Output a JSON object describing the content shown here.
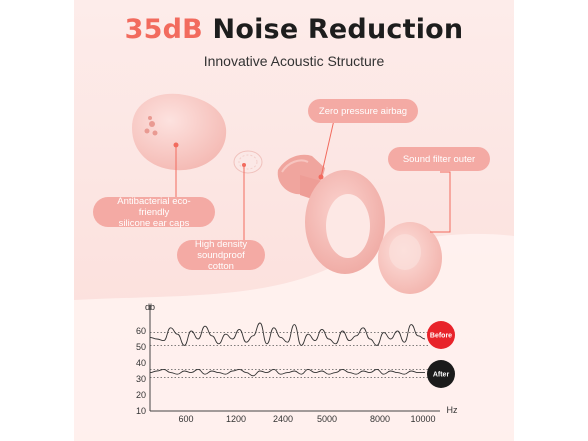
{
  "header": {
    "title_accent": "35dB",
    "title_rest": "Noise Reduction",
    "subtitle": "Innovative Acoustic Structure"
  },
  "callouts": {
    "zero_pressure": "Zero pressure airbag",
    "sound_filter": "Sound filter outer",
    "ear_caps_line1": "Antibacterial eco-friendly",
    "ear_caps_line2": "silicone ear caps",
    "cotton_line1": "High density",
    "cotton_line2": "soundproof cotton"
  },
  "colors": {
    "background": "#fce6e3",
    "accent": "#f26b5e",
    "pill": "#f4aaa4",
    "before_badge": "#e8232a",
    "after_badge": "#1b1b1b"
  },
  "chart_data": {
    "type": "line",
    "ylabel": "db",
    "xlabel": "Hz",
    "x_ticks": [
      "600",
      "1200",
      "2400",
      "5000",
      "8000",
      "10000"
    ],
    "y_ticks": [
      10,
      20,
      30,
      40,
      50,
      60
    ],
    "ylim": [
      10,
      65
    ],
    "reference_lines": [
      59,
      51,
      36,
      31
    ],
    "series": [
      {
        "name": "Before",
        "values": [
          56,
          55,
          54,
          62,
          58,
          51,
          60,
          55,
          63,
          57,
          52,
          58,
          55,
          61,
          53,
          57,
          65,
          52,
          62,
          56,
          53,
          64,
          51,
          58,
          54,
          61,
          55,
          52,
          60,
          54,
          57,
          62,
          55,
          51,
          59,
          55,
          60,
          53,
          64,
          57,
          55
        ]
      },
      {
        "name": "After",
        "values": [
          34,
          35,
          36,
          34,
          33,
          35,
          34,
          36,
          33,
          35,
          34,
          33,
          35,
          36,
          34,
          32,
          35,
          34,
          36,
          33,
          34,
          35,
          33,
          36,
          34,
          35,
          33,
          34,
          36,
          34,
          33,
          35,
          34,
          36,
          33,
          35,
          34,
          33,
          35,
          34,
          34
        ]
      }
    ]
  }
}
